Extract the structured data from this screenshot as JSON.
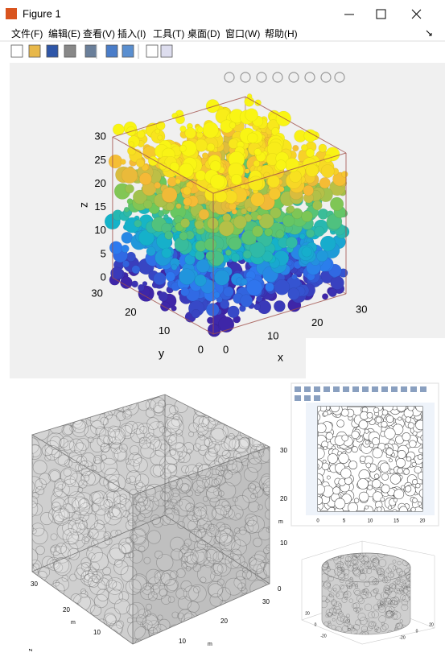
{
  "window": {
    "title": "Figure 1",
    "menu": [
      "文件(F)",
      "编辑(E)",
      "查看(V)",
      "插入(I)",
      "工具(T)",
      "桌面(D)",
      "窗口(W)",
      "帮助(H)"
    ]
  },
  "figure": {
    "z_ticks": [
      0,
      5,
      10,
      15,
      20,
      25,
      30
    ],
    "y_ticks": [
      0,
      10,
      20,
      30
    ],
    "x_ticks": [
      0,
      10,
      20,
      30
    ],
    "x_label": "x",
    "y_label": "y",
    "z_label": "z"
  },
  "gray_cube": {
    "vertical_ticks": [
      0,
      10,
      20,
      30
    ],
    "left_ticks": [
      30,
      20,
      10
    ],
    "right_ticks": [
      10,
      20,
      30
    ],
    "unit_labels": [
      "m",
      "m",
      "m"
    ],
    "z_label": "z"
  },
  "plane_view": {
    "x_ticks": [
      0,
      5,
      10,
      15,
      20
    ]
  },
  "cylinder": {
    "left_ticks": [
      20,
      0,
      -20
    ],
    "right_ticks": [
      -20,
      0,
      20
    ]
  }
}
